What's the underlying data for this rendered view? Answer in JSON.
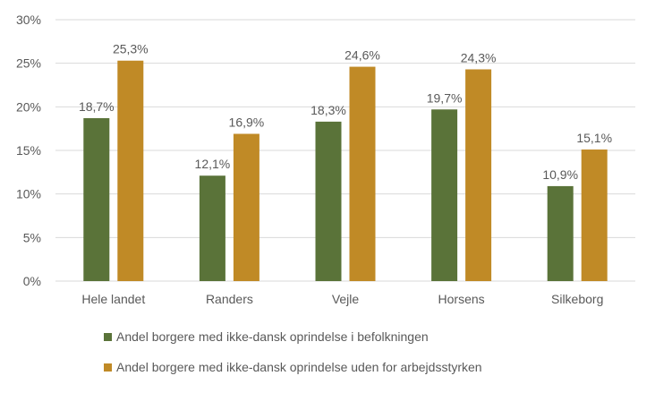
{
  "chart_data": {
    "type": "bar",
    "title": "",
    "xlabel": "",
    "ylabel": "",
    "ylim": [
      0,
      30
    ],
    "yticks": [
      "0%",
      "5%",
      "10%",
      "15%",
      "20%",
      "25%",
      "30%"
    ],
    "grid": true,
    "legend_position": "bottom",
    "categories": [
      "Hele landet",
      "Randers",
      "Vejle",
      "Horsens",
      "Silkeborg"
    ],
    "series": [
      {
        "name": "Andel borgere med ikke-dansk oprindelse i befolkningen",
        "color": "#5a7339",
        "values": [
          18.7,
          12.1,
          18.3,
          19.7,
          10.9
        ],
        "labels": [
          "18,7%",
          "12,1%",
          "18,3%",
          "19,7%",
          "10,9%"
        ]
      },
      {
        "name": "Andel borgere med ikke-dansk oprindelse uden for arbejdsstyrken",
        "color": "#c08a26",
        "values": [
          25.3,
          16.9,
          24.6,
          24.3,
          15.1
        ],
        "labels": [
          "25,3%",
          "16,9%",
          "24,6%",
          "24,3%",
          "15,1%"
        ]
      }
    ]
  }
}
